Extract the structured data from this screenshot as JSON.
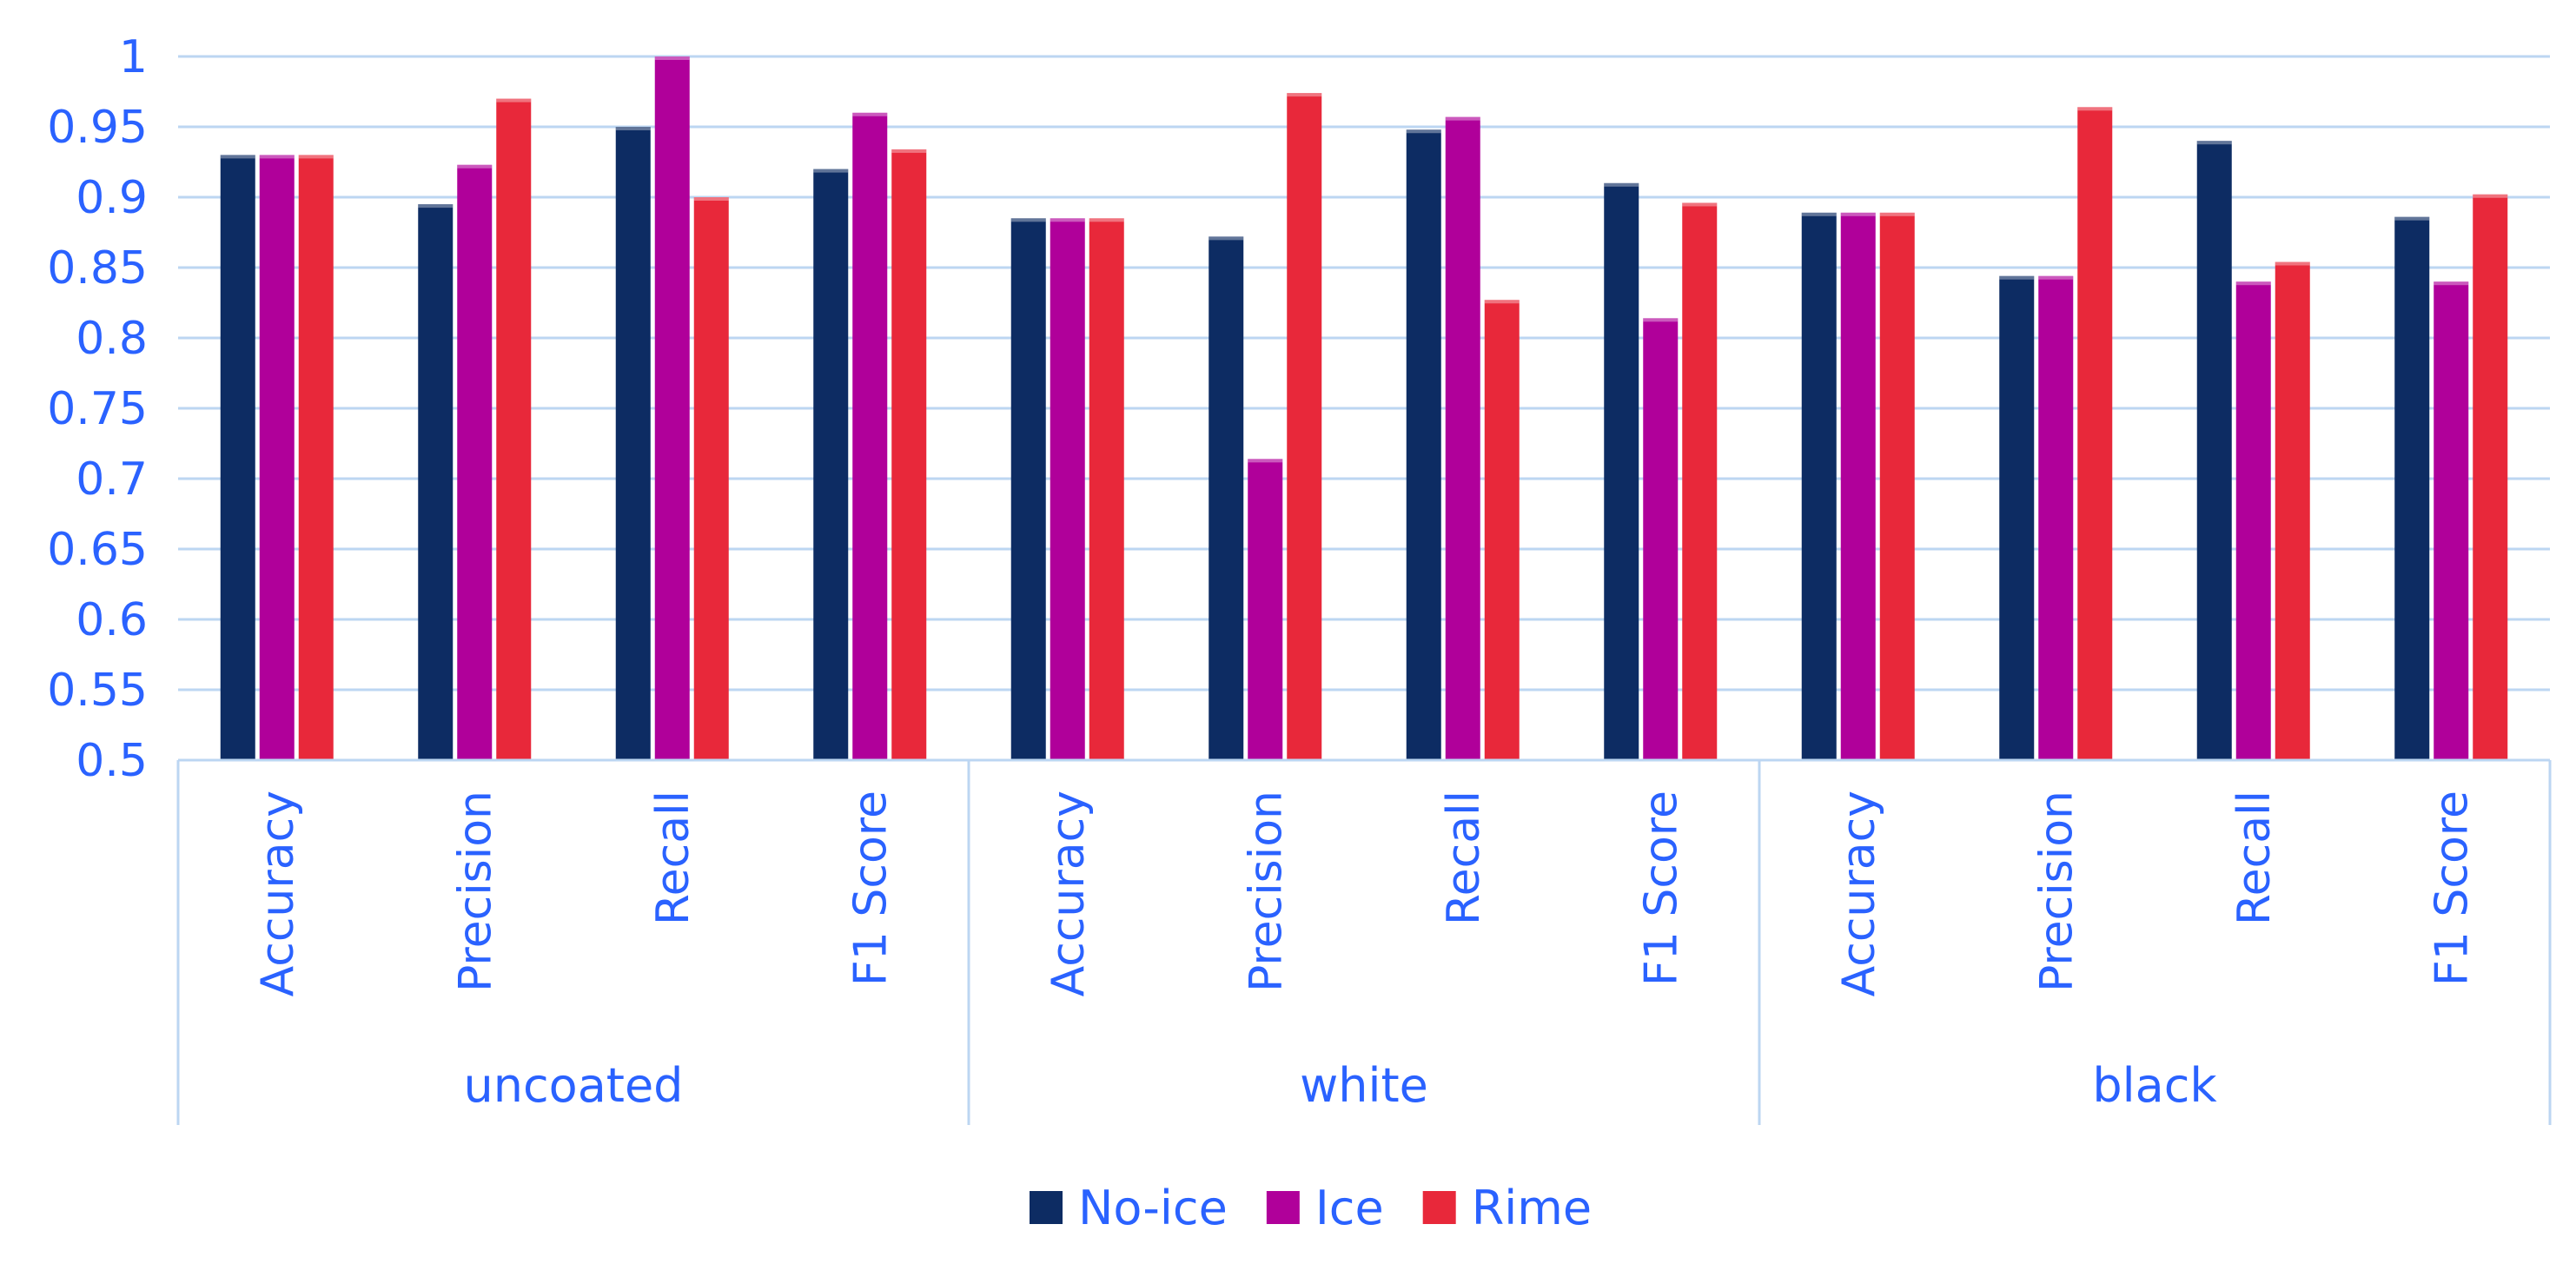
{
  "chart_data": {
    "type": "bar",
    "groups": [
      "uncoated",
      "white",
      "black"
    ],
    "metrics": [
      "Accuracy",
      "Precision",
      "Recall",
      "F1 Score"
    ],
    "series": [
      {
        "name": "No-ice",
        "color": "#0d2c63",
        "values": [
          0.93,
          0.895,
          0.95,
          0.92,
          0.885,
          0.872,
          0.948,
          0.91,
          0.889,
          0.844,
          0.94,
          0.886
        ]
      },
      {
        "name": "Ice",
        "color": "#b0009a",
        "values": [
          0.93,
          0.923,
          1.0,
          0.96,
          0.885,
          0.714,
          0.957,
          0.814,
          0.889,
          0.844,
          0.84,
          0.84
        ]
      },
      {
        "name": "Rime",
        "color": "#e8283a",
        "values": [
          0.93,
          0.97,
          0.9,
          0.934,
          0.885,
          0.974,
          0.827,
          0.896,
          0.889,
          0.964,
          0.854,
          0.902
        ]
      }
    ],
    "ylim": [
      0.5,
      1.0
    ],
    "yticks": [
      "0.5",
      "0.55",
      "0.6",
      "0.65",
      "0.7",
      "0.75",
      "0.8",
      "0.85",
      "0.9",
      "0.95",
      "1"
    ],
    "grid": true,
    "legend_position": "bottom",
    "title": "",
    "xlabel": "",
    "ylabel": ""
  }
}
